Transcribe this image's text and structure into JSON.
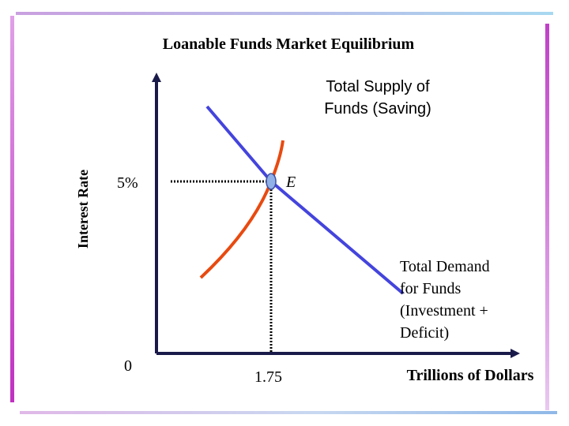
{
  "title": "Loanable Funds Market Equilibrium",
  "y_axis_label": "Interest Rate",
  "x_axis_label": "Trillions of Dollars",
  "rate_label": "5%",
  "origin_label": "0",
  "quantity_label": "1.75",
  "equilibrium_label": "E",
  "supply_label": [
    "Total Supply of",
    "Funds (Saving)"
  ],
  "demand_label": [
    "Total Demand",
    "for Funds",
    "(Investment +",
    "Deficit)"
  ]
}
